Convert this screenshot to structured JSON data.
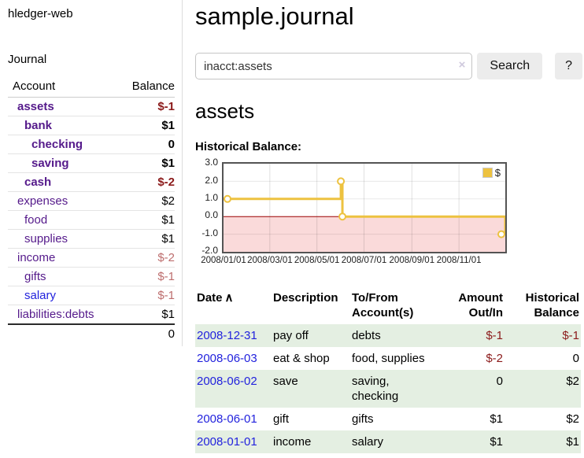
{
  "colors": {
    "link_purple": "#551a8b",
    "link_blue": "#2222dd",
    "negative_strong": "#8b1a1a",
    "negative_muted": "#bd6d6d",
    "row_green": "#e4efe2",
    "series_gold": "#edc240",
    "area_pink": "#fadada",
    "zero_line": "#990000",
    "default": "#000000"
  },
  "sidebar": {
    "app_title": "hledger-web",
    "nav_journal": "Journal",
    "accounts": {
      "col_account": "Account",
      "col_balance": "Balance",
      "rows": [
        {
          "name": "assets",
          "balance": "$-1",
          "level": 0,
          "bold": true,
          "name_color": "link_purple",
          "balance_color": "negative_strong"
        },
        {
          "name": "bank",
          "balance": "$1",
          "level": 1,
          "bold": true,
          "name_color": "link_purple",
          "balance_color": "default"
        },
        {
          "name": "checking",
          "balance": "0",
          "level": 2,
          "bold": true,
          "name_color": "link_purple",
          "balance_color": "default"
        },
        {
          "name": "saving",
          "balance": "$1",
          "level": 2,
          "bold": true,
          "name_color": "link_purple",
          "balance_color": "default"
        },
        {
          "name": "cash",
          "balance": "$-2",
          "level": 1,
          "bold": true,
          "name_color": "link_purple",
          "balance_color": "negative_strong"
        },
        {
          "name": "expenses",
          "balance": "$2",
          "level": 0,
          "bold": false,
          "name_color": "link_purple",
          "balance_color": "default"
        },
        {
          "name": "food",
          "balance": "$1",
          "level": 1,
          "bold": false,
          "name_color": "link_purple",
          "balance_color": "default"
        },
        {
          "name": "supplies",
          "balance": "$1",
          "level": 1,
          "bold": false,
          "name_color": "link_purple",
          "balance_color": "default"
        },
        {
          "name": "income",
          "balance": "$-2",
          "level": 0,
          "bold": false,
          "name_color": "link_purple",
          "balance_color": "negative_muted"
        },
        {
          "name": "gifts",
          "balance": "$-1",
          "level": 1,
          "bold": false,
          "name_color": "link_purple",
          "balance_color": "negative_muted"
        },
        {
          "name": "salary",
          "balance": "$-1",
          "level": 1,
          "bold": false,
          "name_color": "link_blue",
          "balance_color": "negative_muted"
        },
        {
          "name": "liabilities:debts",
          "balance": "$1",
          "level": 0,
          "bold": false,
          "name_color": "link_purple",
          "balance_color": "default"
        }
      ],
      "total": "0"
    }
  },
  "main": {
    "title": "sample.journal",
    "search": {
      "value": "inacct:assets",
      "clear_icon": "×",
      "search_label": "Search",
      "help_label": "?"
    },
    "account_heading": "assets",
    "register": {
      "headers": {
        "date": "Date",
        "sort_icon": "∧",
        "description": "Description",
        "tofrom": "To/From Account(s)",
        "amount": "Amount Out/In",
        "balance": "Historical Balance"
      },
      "rows": [
        {
          "date": "2008-12-31",
          "description": "pay off",
          "accounts": "debts",
          "amount": "$-1",
          "amount_color": "negative_strong",
          "balance": "$-1",
          "balance_color": "negative_strong"
        },
        {
          "date": "2008-06-03",
          "description": "eat & shop",
          "accounts": "food, supplies",
          "amount": "$-2",
          "amount_color": "negative_strong",
          "balance": "0",
          "balance_color": "default"
        },
        {
          "date": "2008-06-02",
          "description": "save",
          "accounts": "saving, checking",
          "amount": "0",
          "amount_color": "default",
          "balance": "$2",
          "balance_color": "default"
        },
        {
          "date": "2008-06-01",
          "description": "gift",
          "accounts": "gifts",
          "amount": "$1",
          "amount_color": "default",
          "balance": "$2",
          "balance_color": "default"
        },
        {
          "date": "2008-01-01",
          "description": "income",
          "accounts": "salary",
          "amount": "$1",
          "amount_color": "default",
          "balance": "$1",
          "balance_color": "default"
        }
      ]
    }
  },
  "chart_data": {
    "type": "line",
    "step": true,
    "title": "Historical Balance:",
    "legend_label": "$",
    "legend_position": "top-right",
    "grid": true,
    "ylim": [
      -2,
      3
    ],
    "x_range_days": 365,
    "points": [
      {
        "date": "2008-01-01",
        "day": 0,
        "balance": 1
      },
      {
        "date": "2008-06-01",
        "day": 152,
        "balance": 2
      },
      {
        "date": "2008-06-03",
        "day": 154,
        "balance": 0
      },
      {
        "date": "2008-12-31",
        "day": 365,
        "balance": -1
      }
    ],
    "x_ticks": [
      {
        "label": "2008/01/01",
        "day": 0
      },
      {
        "label": "2008/03/01",
        "day": 60
      },
      {
        "label": "2008/05/01",
        "day": 121
      },
      {
        "label": "2008/07/01",
        "day": 182
      },
      {
        "label": "2008/09/01",
        "day": 244
      },
      {
        "label": "2008/11/01",
        "day": 305
      }
    ],
    "y_ticks": [
      {
        "label": "3.0",
        "value": 3
      },
      {
        "label": "2.0",
        "value": 2
      },
      {
        "label": "1.0",
        "value": 1
      },
      {
        "label": "0.0",
        "value": 0
      },
      {
        "label": "-1.0",
        "value": -1
      },
      {
        "label": "-2.0",
        "value": -2
      }
    ],
    "y_grid_values": [
      2,
      1,
      -1
    ],
    "markings": {
      "zero_line": true,
      "negative_region_shaded": true
    }
  }
}
